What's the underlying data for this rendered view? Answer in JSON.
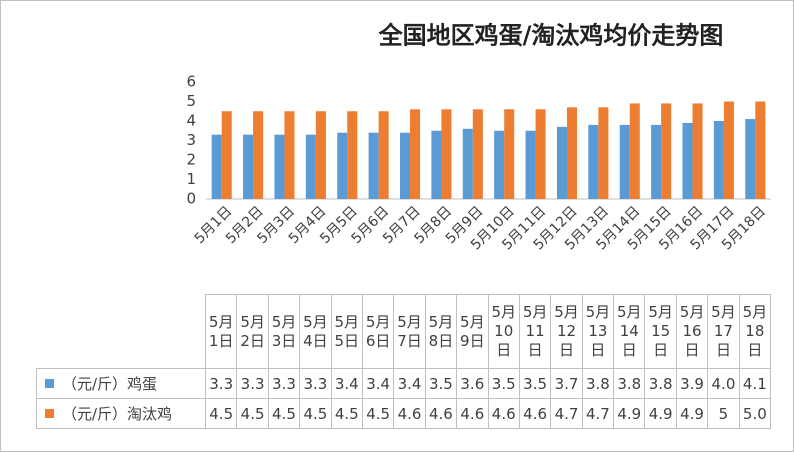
{
  "chart_data": {
    "type": "bar",
    "title": "全国地区鸡蛋/淘汰鸡均价走势图",
    "categories": [
      "5月1日",
      "5月2日",
      "5月3日",
      "5月4日",
      "5月5日",
      "5月6日",
      "5月7日",
      "5月8日",
      "5月9日",
      "5月10日",
      "5月11日",
      "5月12日",
      "5月13日",
      "5月14日",
      "5月15日",
      "5月16日",
      "5月17日",
      "5月18日"
    ],
    "series": [
      {
        "name": "（元/斤）鸡蛋",
        "color": "#5b9bd5",
        "values": [
          3.3,
          3.3,
          3.3,
          3.3,
          3.4,
          3.4,
          3.4,
          3.5,
          3.6,
          3.5,
          3.5,
          3.7,
          3.8,
          3.8,
          3.8,
          3.9,
          4.0,
          4.1
        ],
        "value_labels": [
          "3.3",
          "3.3",
          "3.3",
          "3.3",
          "3.4",
          "3.4",
          "3.4",
          "3.5",
          "3.6",
          "3.5",
          "3.5",
          "3.7",
          "3.8",
          "3.8",
          "3.8",
          "3.9",
          "4.0",
          "4.1"
        ]
      },
      {
        "name": "（元/斤）淘汰鸡",
        "color": "#ed7d31",
        "values": [
          4.5,
          4.5,
          4.5,
          4.5,
          4.5,
          4.5,
          4.6,
          4.6,
          4.6,
          4.6,
          4.6,
          4.7,
          4.7,
          4.9,
          4.9,
          4.9,
          5,
          5.0
        ],
        "value_labels": [
          "4.5",
          "4.5",
          "4.5",
          "4.5",
          "4.5",
          "4.5",
          "4.6",
          "4.6",
          "4.6",
          "4.6",
          "4.6",
          "4.7",
          "4.7",
          "4.9",
          "4.9",
          "4.9",
          "5",
          "5.0"
        ]
      }
    ],
    "ylim": [
      0,
      6
    ],
    "yticks": [
      0,
      1,
      2,
      3,
      4,
      5,
      6
    ],
    "grid": false
  }
}
